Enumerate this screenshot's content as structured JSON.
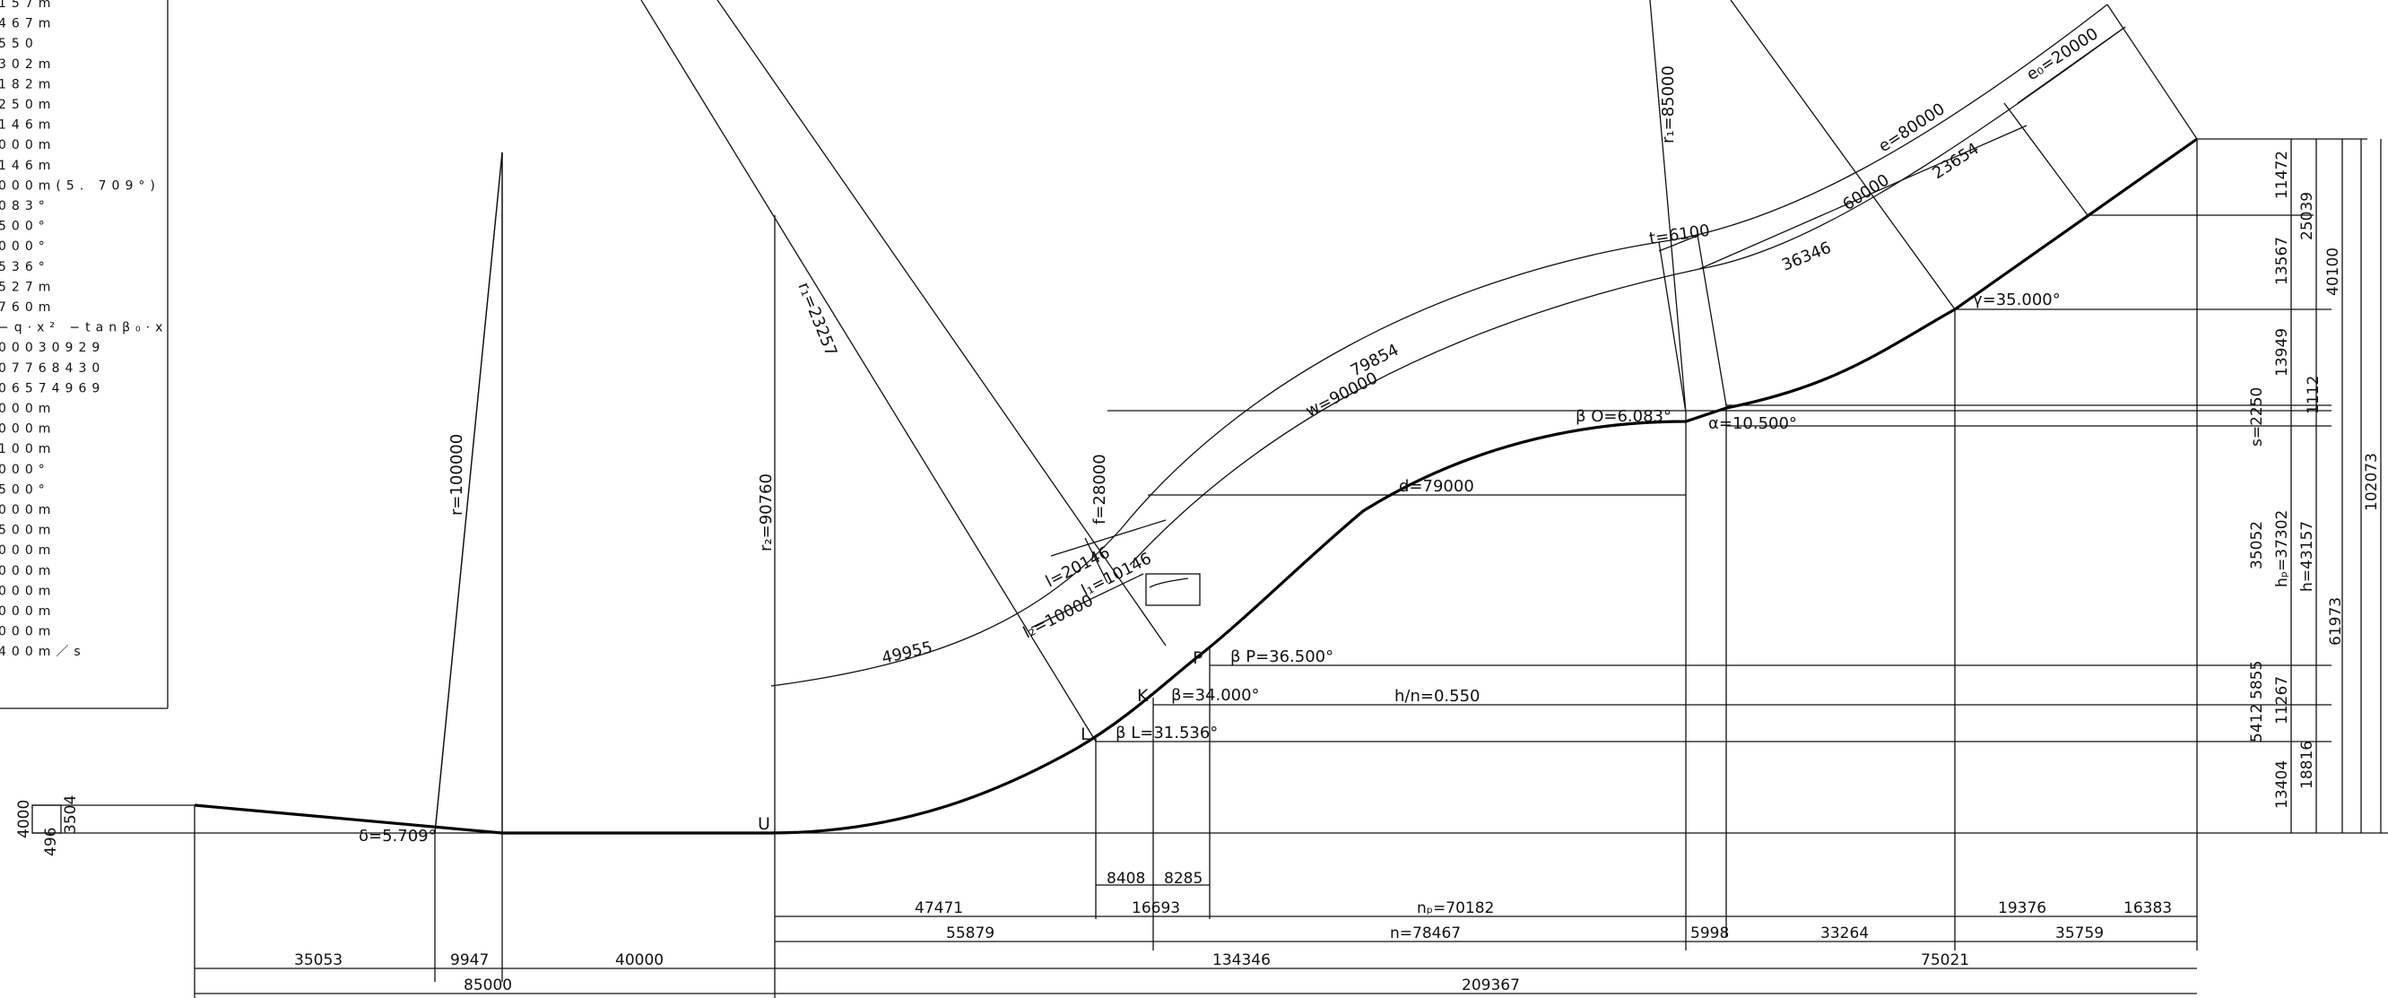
{
  "drawing_title": "",
  "legend_lines": [
    "157m",
    "467m",
    "550",
    "302m",
    "182m",
    "250m",
    "146m",
    "000m",
    "146m",
    "000m(5. 709°)",
    "083°",
    "500°",
    "000°",
    "536°",
    "527m",
    "760m",
    "−q·x² −tanβ₀·x",
    "00030929",
    "07768430",
    "06574969",
    "000m",
    "000m",
    "100m",
    "000°",
    "500°",
    "000m",
    "500m",
    "000m",
    "000m",
    "000m",
    "000m",
    "000m",
    "400m／s"
  ],
  "points": {
    "U": "U",
    "L": "L",
    "K": "K",
    "P": "P"
  },
  "angles": {
    "delta": "δ=5.709°",
    "beta_L": "β L=31.536°",
    "beta": "β=34.000°",
    "beta_P": "β P=36.500°",
    "beta_0": "β O=6.083°",
    "alpha": "α=10.500°",
    "gamma": "γ=35.000°"
  },
  "radii": {
    "r": "r=100000",
    "r2": "r₂=90760",
    "r1_left": "r₁=23257",
    "r1_right": "r₁=85000"
  },
  "lengths": {
    "w": "w=90000",
    "w_inner": "79854",
    "t": "t=6100",
    "e": "e=80000",
    "e_inner": "60000",
    "e0": "e₀=20000",
    "e0_inner": "23654",
    "seg_36346": "36346",
    "f": "f=28000",
    "l": "l=20146",
    "l1": "l₁=10146",
    "l2": "l₂=10000",
    "arc_49955": "49955",
    "d": "d=79000",
    "hn": "h/n=0.550"
  },
  "bottom_dims": {
    "row1": [
      "8408",
      "8285"
    ],
    "row2": [
      "47471",
      "16693",
      "nₚ=70182",
      "19376",
      "16383"
    ],
    "row3": [
      "55879",
      "n=78467",
      "5998",
      "33264",
      "35759"
    ],
    "row4": [
      "35053",
      "9947",
      "40000",
      "134346",
      "75021"
    ],
    "row5": [
      "85000",
      "209367"
    ]
  },
  "left_dims": [
    "4000",
    "496",
    "3504"
  ],
  "right_dims": {
    "col1": [
      "11472",
      "13567",
      "13949",
      "1112",
      "s=2250",
      "35052",
      "5855",
      "5412",
      "13404"
    ],
    "col2": [
      "25039",
      "hₚ=37302",
      "11267",
      "18816"
    ],
    "col3": [
      "40100",
      "h=43157"
    ],
    "col4": [
      "61973"
    ],
    "col5": [
      "102073"
    ]
  }
}
